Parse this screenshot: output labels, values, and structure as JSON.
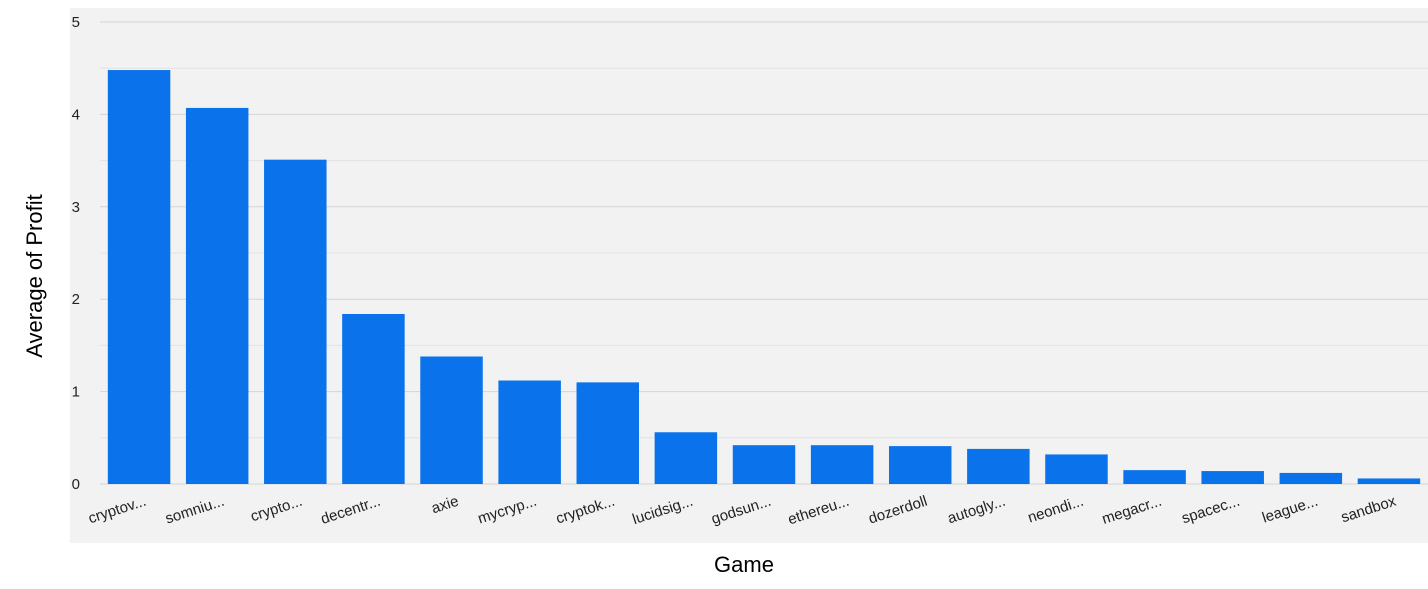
{
  "chart_data": {
    "type": "bar",
    "title": "",
    "xlabel": "Game",
    "ylabel": "Average of Profit",
    "categories": [
      "cryptov...",
      "somniu...",
      "crypto...",
      "decentr...",
      "axie",
      "mycryp...",
      "cryptok...",
      "lucidsig...",
      "godsun...",
      "ethereu...",
      "dozerdoll",
      "autogly...",
      "neondi...",
      "megacr...",
      "spacec...",
      "league...",
      "sandbox"
    ],
    "values": [
      4.48,
      4.07,
      3.51,
      1.84,
      1.38,
      1.12,
      1.1,
      0.56,
      0.42,
      0.42,
      0.41,
      0.38,
      0.32,
      0.15,
      0.14,
      0.12,
      0.06
    ],
    "ylim": [
      0,
      5
    ],
    "yticks": [
      0,
      1,
      2,
      3,
      4,
      5
    ],
    "grid": true,
    "minor_grid": true,
    "bar_color": "#0a73eb",
    "plot_background": "#f2f2f2"
  }
}
